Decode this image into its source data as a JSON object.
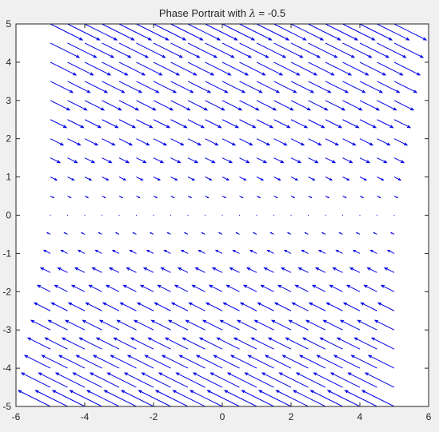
{
  "chart_data": {
    "type": "quiver",
    "title_prefix": "Phase Portrait with ",
    "title_symbol": "λ",
    "title_suffix": " = -0.5",
    "xlabel": "",
    "ylabel": "",
    "xlim": [
      -6,
      6
    ],
    "ylim": [
      -5,
      5
    ],
    "xticks": [
      "-6",
      "-4",
      "-2",
      "0",
      "2",
      "4",
      "6"
    ],
    "yticks": [
      "-5",
      "-4",
      "-3",
      "-2",
      "-1",
      "0",
      "1",
      "2",
      "3",
      "4",
      "5"
    ],
    "grid": false,
    "arrow_color": "#0000e6",
    "field": {
      "x_range": [
        -5,
        5
      ],
      "y_range": [
        -5,
        5
      ],
      "samples_x": 21,
      "samples_y": 21,
      "dx": "y",
      "dy": "-0.5*y",
      "note_shape": "arrows point right-down above y=0, left-up below y=0, magnitude grows with |y|"
    }
  }
}
